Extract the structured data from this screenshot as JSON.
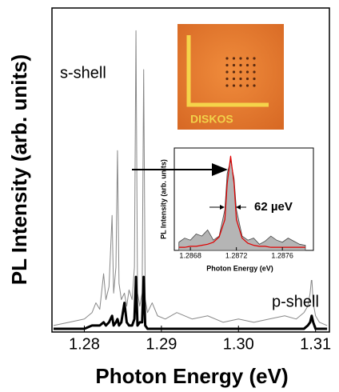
{
  "chart_data": [
    {
      "type": "line",
      "xlabel": "Photon Energy (eV)",
      "ylabel": "PL Intensity (arb. units)",
      "annotations": [
        "s-shell",
        "p-shell"
      ],
      "x": [
        1.276,
        1.278,
        1.28,
        1.281,
        1.2815,
        1.282,
        1.2825,
        1.2828,
        1.2832,
        1.2836,
        1.2838,
        1.2841,
        1.2843,
        1.2845,
        1.2848,
        1.2852,
        1.2855,
        1.2858,
        1.2862,
        1.2865,
        1.2867,
        1.2869,
        1.2872,
        1.2875,
        1.2877,
        1.2879,
        1.2882,
        1.2888,
        1.2895,
        1.2905,
        1.292,
        1.294,
        1.296,
        1.298,
        1.3,
        1.302,
        1.304,
        1.306,
        1.3075,
        1.3085,
        1.309,
        1.3093,
        1.3095,
        1.3097,
        1.31,
        1.3105,
        1.3115
      ],
      "series": [
        {
          "color": "#888888",
          "width": 1,
          "values": [
            2,
            3,
            4,
            6,
            9,
            7,
            18,
            10,
            14,
            36,
            12,
            20,
            56,
            15,
            10,
            12,
            8,
            13,
            10,
            20,
            93,
            12,
            8,
            12,
            81,
            10,
            6,
            9,
            5,
            4,
            6,
            4,
            5,
            3,
            4,
            3,
            4,
            5,
            4,
            6,
            8,
            12,
            17,
            9,
            5,
            3,
            2
          ]
        },
        {
          "color": "#000000",
          "width": 3,
          "values": [
            1,
            1,
            1,
            2,
            2,
            2,
            3,
            2,
            3,
            5,
            2,
            3,
            4,
            2,
            3,
            9,
            3,
            2,
            2,
            4,
            17,
            2,
            3,
            3,
            17,
            2,
            1,
            1,
            1,
            1,
            1,
            1,
            1,
            1,
            1,
            1,
            1,
            1,
            1,
            1,
            2,
            3,
            5,
            3,
            1,
            1,
            1
          ]
        }
      ],
      "xlim": [
        1.2758,
        1.3118
      ],
      "ylim": [
        0,
        100
      ],
      "xticks": [
        1.28,
        1.29,
        {
          "value": 1.3,
          "label": "1.30"
        },
        1.31
      ]
    },
    {
      "type": "line",
      "xlabel": "Photon Energy (eV)",
      "ylabel": "PL Intensity (arb. units)",
      "annotation": "62 µeV",
      "x": [
        1.2867,
        1.28675,
        1.2868,
        1.28685,
        1.2869,
        1.28695,
        1.287,
        1.28705,
        1.2871,
        1.28712,
        1.28715,
        1.28718,
        1.2872,
        1.28725,
        1.2873,
        1.28735,
        1.2874,
        1.28745,
        1.2875,
        1.28755,
        1.2876,
        1.28765,
        1.2877,
        1.28775,
        1.2878
      ],
      "series": [
        {
          "color": "#b5b5b5",
          "fill": true,
          "values": [
            8,
            12,
            10,
            16,
            14,
            20,
            10,
            14,
            40,
            75,
            88,
            70,
            40,
            14,
            10,
            12,
            6,
            9,
            14,
            10,
            8,
            12,
            9,
            6,
            5
          ]
        },
        {
          "color": "#e00000",
          "values": [
            3,
            3,
            4,
            4,
            5,
            6,
            8,
            13,
            30,
            65,
            92,
            65,
            30,
            12,
            7,
            5,
            4,
            4,
            3,
            3,
            3,
            3,
            3,
            3,
            3
          ]
        }
      ],
      "xlim": [
        1.28666,
        1.28787
      ],
      "ylim": [
        0,
        100
      ],
      "xticks": [
        1.2868,
        1.2872,
        1.2876
      ]
    }
  ],
  "inset_photo": {
    "label": "DISKOS"
  }
}
